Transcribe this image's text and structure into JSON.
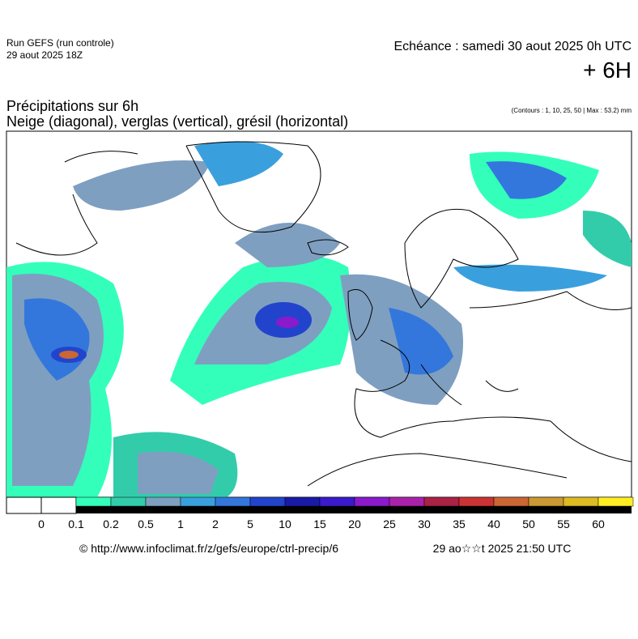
{
  "header": {
    "run": "Run GEFS (run controle)",
    "run_date": "29 aout 2025 18Z",
    "valid": "Echéance : samedi 30 aout 2025 0h UTC",
    "lead": "+ 6H",
    "title": "Précipitations sur 6h",
    "subtitle": "Neige (diagonal), verglas (vertical), grésil (horizontal)",
    "contours": "(Contours : 1, 10, 25, 50 | Max : 53.2) mm"
  },
  "legend": {
    "labels": [
      0,
      0.1,
      0.2,
      0.5,
      1,
      2,
      5,
      10,
      15,
      20,
      25,
      30,
      35,
      40,
      50,
      55,
      60
    ],
    "colors": [
      "#33ffbb",
      "#33ccaa",
      "#7f9fc0",
      "#3aa0dd",
      "#3377dd",
      "#2244cc",
      "#1a1aa8",
      "#3a1acc",
      "#8a1acc",
      "#aa22aa",
      "#aa2244",
      "#cc3333",
      "#cc6633",
      "#cc9933",
      "#ddbb22",
      "#ffee22"
    ]
  },
  "footer": {
    "url": "© http://www.infoclimat.fr/z/gefs/europe/ctrl-precip/6",
    "stamp": "29 ao☆☆t 2025 21:50 UTC"
  }
}
